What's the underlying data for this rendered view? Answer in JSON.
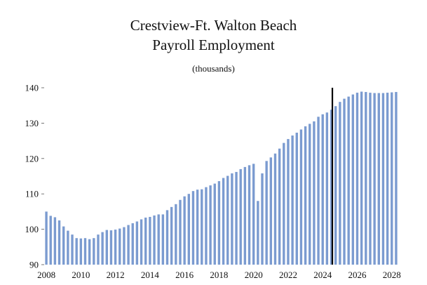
{
  "chart_data": {
    "type": "bar",
    "title": [
      "Crestview-Ft. Walton Beach",
      "Payroll Employment"
    ],
    "subtitle": "(thousands)",
    "xlabel": "",
    "ylabel": "",
    "ylim": [
      90,
      140
    ],
    "yticks": [
      90,
      100,
      110,
      120,
      130,
      140
    ],
    "xticks": [
      "2008",
      "2010",
      "2012",
      "2014",
      "2016",
      "2018",
      "2020",
      "2022",
      "2024",
      "2026",
      "2028"
    ],
    "x_start": "2008 Q1",
    "frequency": "quarterly",
    "forecast_marker": "2024 Q3",
    "bar_color": "#7b9bd0",
    "marker_color": "#000000",
    "grid": false,
    "values": [
      105.0,
      103.8,
      103.4,
      102.5,
      100.8,
      99.6,
      98.5,
      97.5,
      97.4,
      97.5,
      97.2,
      97.5,
      98.5,
      99.2,
      99.8,
      99.7,
      99.9,
      100.2,
      100.6,
      101.2,
      101.7,
      102.2,
      102.8,
      103.3,
      103.5,
      103.9,
      104.2,
      104.2,
      105.4,
      106.3,
      107.1,
      108.3,
      109.3,
      110.0,
      110.8,
      111.2,
      111.3,
      111.9,
      112.4,
      112.9,
      113.6,
      114.5,
      115.1,
      115.8,
      116.2,
      117.0,
      117.6,
      118.1,
      118.5,
      108.0,
      115.8,
      119.3,
      120.3,
      121.4,
      122.8,
      124.4,
      125.5,
      126.5,
      127.3,
      128.2,
      129.1,
      129.8,
      130.5,
      131.8,
      132.5,
      133.0,
      133.8,
      134.8,
      136.0,
      136.9,
      137.5,
      138.1,
      138.6,
      138.9,
      138.8,
      138.6,
      138.5,
      138.5,
      138.5,
      138.6,
      138.7,
      138.8
    ]
  }
}
